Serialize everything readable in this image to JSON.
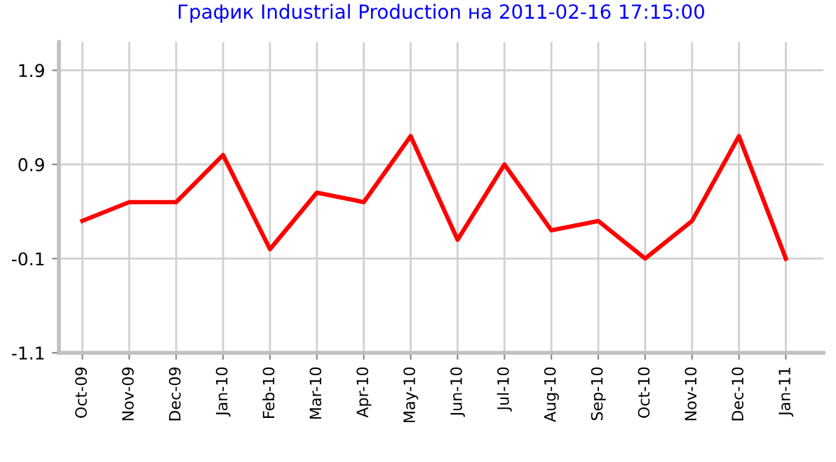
{
  "chart_data": {
    "type": "line",
    "title": "График Industrial Production на 2011-02-16 17:15:00",
    "categories": [
      "Oct-09",
      "Nov-09",
      "Dec-09",
      "Jan-10",
      "Feb-10",
      "Mar-10",
      "Apr-10",
      "May-10",
      "Jun-10",
      "Jul-10",
      "Aug-10",
      "Sep-10",
      "Oct-10",
      "Nov-10",
      "Dec-10",
      "Jan-11"
    ],
    "series": [
      {
        "color": "#ff0000",
        "values": [
          0.3,
          0.5,
          0.5,
          1.0,
          0.0,
          0.6,
          0.5,
          1.2,
          0.1,
          0.9,
          0.2,
          0.3,
          -0.1,
          0.3,
          1.2,
          -0.1
        ]
      }
    ],
    "ylim": [
      -1.1,
      2.2
    ],
    "yticks": [
      -1.1,
      -0.1,
      0.9,
      1.9
    ],
    "grid": true,
    "marker": "none",
    "line_style": "solid"
  }
}
